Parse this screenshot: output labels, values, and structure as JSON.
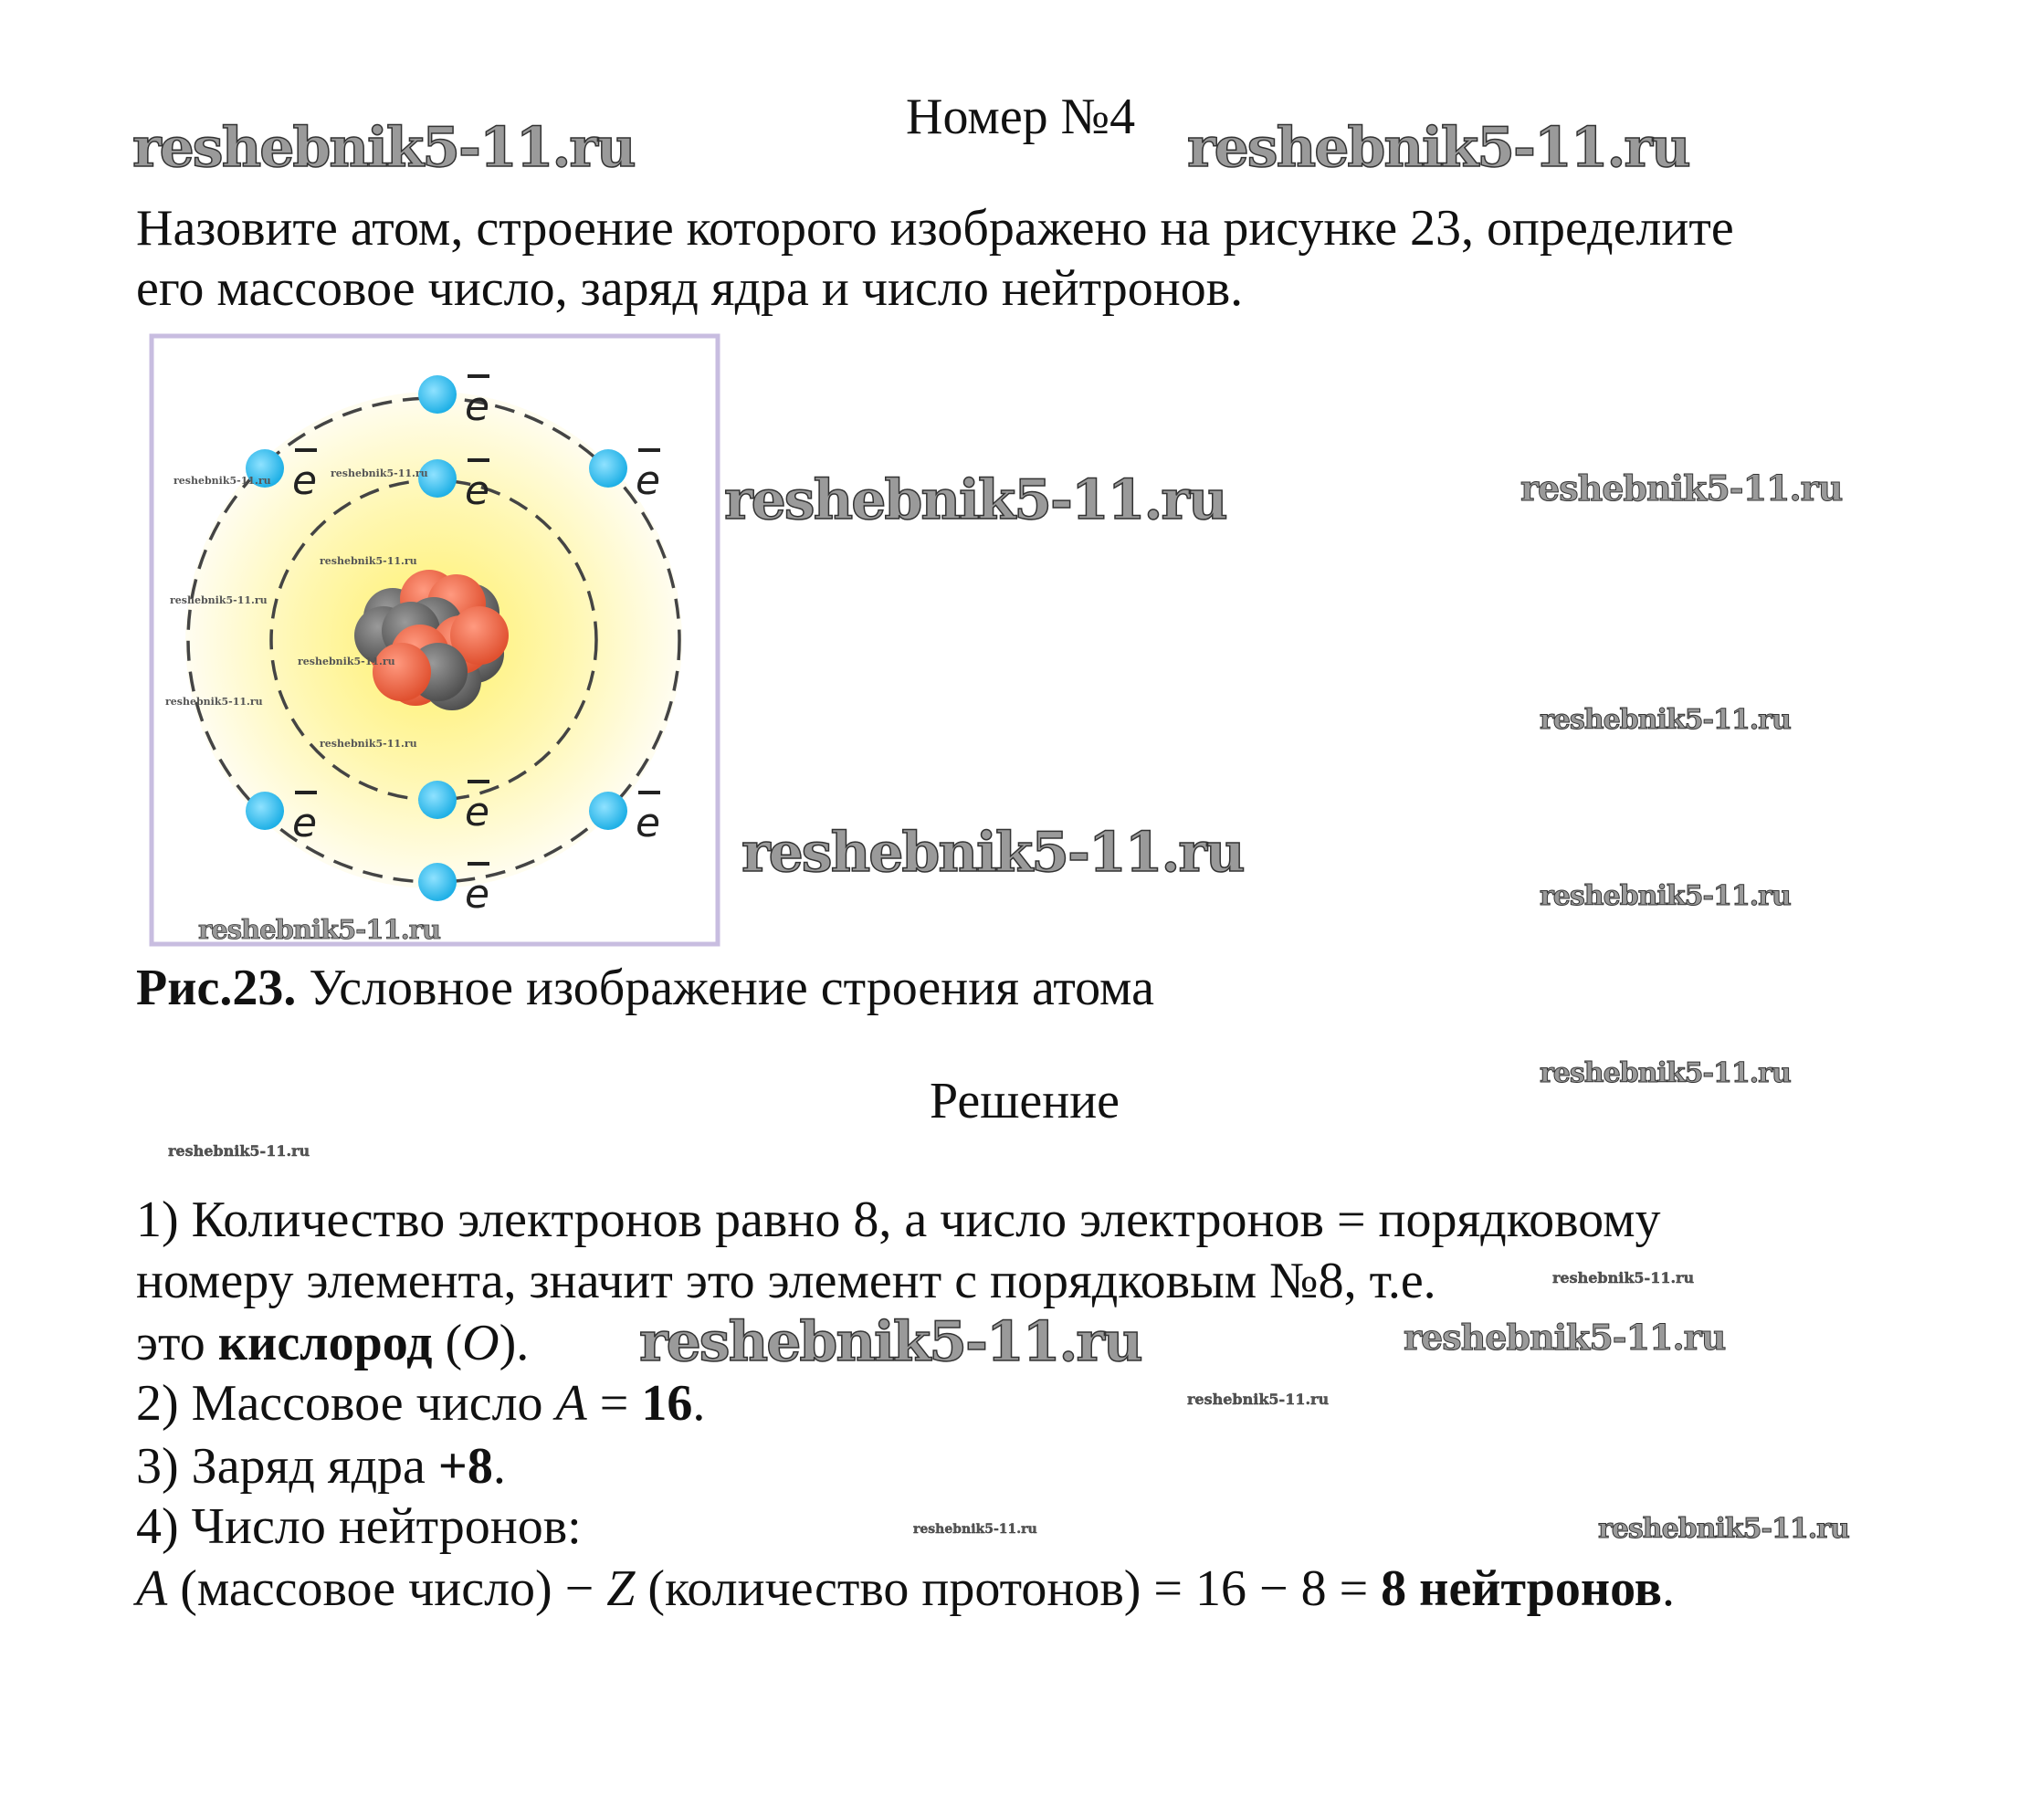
{
  "header": {
    "title": "Номер №4"
  },
  "problem": {
    "lines": [
      "Назовите атом, строение которого изображено на рисунке 23, определите",
      "его массовое число, заряд ядра и число нейтронов."
    ]
  },
  "figure": {
    "electron_label": "e",
    "electron_count": 8,
    "caption_number": "Рис.23.",
    "caption_text": " Условное изображение строения атома",
    "colors": {
      "electron": "#35c0ef",
      "proton": "#ef6a4c",
      "neutron": "#6c6c6c",
      "glow": "#fff06a",
      "frame": "#c8bde0"
    }
  },
  "solution": {
    "heading": "Решение",
    "l1": "1) Количество электронов равно 8, а число электронов = порядковому",
    "l2": "номеру элемента, значит это элемент с порядковым №8, т.е.",
    "l3": {
      "a": "это ",
      "b": "кислород",
      "c": " (",
      "d": "O",
      "e": ")."
    },
    "l4": {
      "a": "2) Массовое число ",
      "b": "A",
      "c": " = ",
      "d": "16",
      "e": "."
    },
    "l5": {
      "a": "3) Заряд ядра ",
      "b": "+8",
      "c": "."
    },
    "l6": "4) Число нейтронов:",
    "l7": {
      "a": "A",
      "b": " (массовое число) − ",
      "c": "Z",
      "d": " (количество протонов) = 16 − 8 = ",
      "e": "8 нейтронов",
      "f": "."
    }
  },
  "watermark": "reshebnik5-11.ru"
}
